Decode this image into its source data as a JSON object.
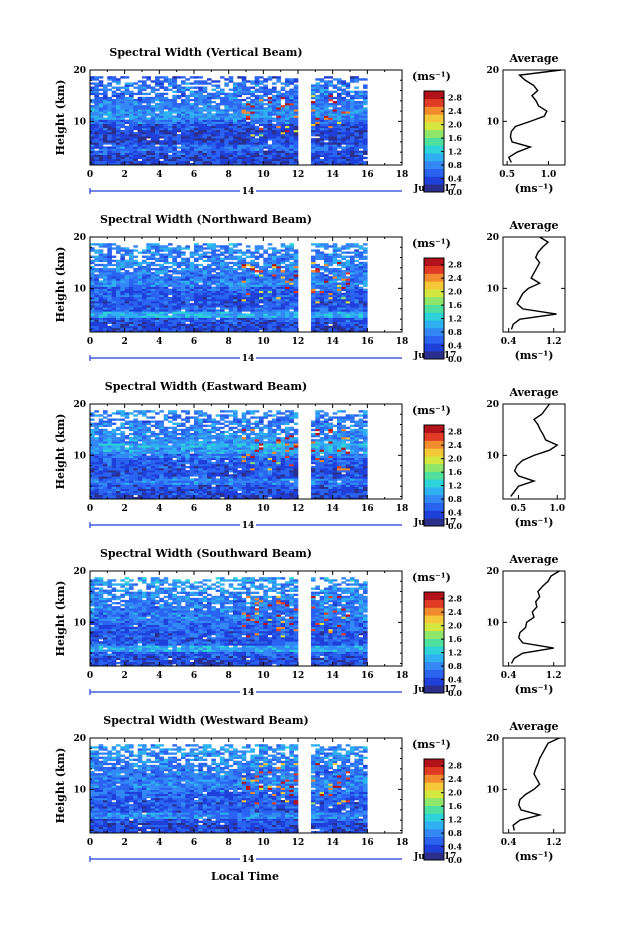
{
  "figure": {
    "xlabel": "Local Time",
    "cbar_ticks": [
      "0.0",
      "0.4",
      "0.8",
      "1.2",
      "1.6",
      "2.0",
      "2.4",
      "2.8"
    ],
    "colormap": [
      "#2b2f8c",
      "#1f3fd9",
      "#2a63f0",
      "#3388f5",
      "#2fb0f0",
      "#2ed3d9",
      "#4fe0a0",
      "#8fe66a",
      "#d4e640",
      "#f5c83a",
      "#f28a2e",
      "#e03b24",
      "#b3121a"
    ],
    "missing_color": "#ffffff"
  },
  "chart_data": [
    {
      "type": "heatmap",
      "title": "Spectral Width (Vertical Beam)",
      "ylabel": "Height (km)",
      "cbar_label": "(ms⁻¹)",
      "date_label": "14",
      "month_label": "Jul 2017",
      "x_ticks": [
        "0",
        "2",
        "4",
        "6",
        "8",
        "10",
        "12",
        "14",
        "16",
        "18"
      ],
      "xlim": [
        0,
        18
      ],
      "y_ticks": [
        "10",
        "20"
      ],
      "ylim": [
        1.5,
        20
      ],
      "zlim": [
        0,
        3.0
      ],
      "data_extent_hours": [
        0,
        16
      ],
      "gap_hours": [
        12.0,
        12.6
      ],
      "profile": {
        "title": "Average",
        "xlabel": "(ms⁻¹)",
        "x_ticks": [
          "0.5",
          "1.0"
        ],
        "x_tick_values": [
          0.5,
          1.0
        ],
        "xlim": [
          0.45,
          1.2
        ],
        "height": [
          2,
          3,
          4,
          5,
          6,
          7,
          8,
          9,
          10,
          11,
          12,
          13,
          14,
          15,
          16,
          17,
          18,
          19,
          20
        ],
        "value": [
          0.55,
          0.52,
          0.62,
          0.78,
          0.56,
          0.54,
          0.55,
          0.6,
          0.78,
          0.95,
          0.98,
          0.88,
          0.85,
          0.8,
          0.87,
          0.82,
          0.72,
          0.65,
          1.15
        ]
      }
    },
    {
      "type": "heatmap",
      "title": "Spectral Width (Northward Beam)",
      "ylabel": "Height (km)",
      "cbar_label": "(ms⁻¹)",
      "date_label": "14",
      "month_label": "Jul 2017",
      "x_ticks": [
        "0",
        "2",
        "4",
        "6",
        "8",
        "10",
        "12",
        "14",
        "16",
        "18"
      ],
      "xlim": [
        0,
        18
      ],
      "y_ticks": [
        "10",
        "20"
      ],
      "ylim": [
        1.5,
        20
      ],
      "zlim": [
        0,
        3.0
      ],
      "data_extent_hours": [
        0,
        16
      ],
      "gap_hours": [
        12.0,
        12.6
      ],
      "profile": {
        "title": "Average",
        "xlabel": "(ms⁻¹)",
        "x_ticks": [
          "0.4",
          "1.2"
        ],
        "x_tick_values": [
          0.4,
          1.2
        ],
        "xlim": [
          0.3,
          1.4
        ],
        "height": [
          2,
          3,
          4,
          5,
          6,
          7,
          8,
          9,
          10,
          11,
          12,
          13,
          14,
          15,
          16,
          17,
          18,
          19,
          20
        ],
        "value": [
          0.45,
          0.48,
          0.6,
          1.25,
          0.65,
          0.55,
          0.6,
          0.65,
          0.75,
          0.95,
          0.8,
          0.85,
          0.9,
          0.95,
          0.88,
          0.92,
          1.0,
          1.1,
          0.95
        ]
      }
    },
    {
      "type": "heatmap",
      "title": "Spectral Width (Eastward Beam)",
      "ylabel": "Height (km)",
      "cbar_label": "(ms⁻¹)",
      "date_label": "14",
      "month_label": "Jul 2017",
      "x_ticks": [
        "0",
        "2",
        "4",
        "6",
        "8",
        "10",
        "12",
        "14",
        "16",
        "18"
      ],
      "xlim": [
        0,
        18
      ],
      "y_ticks": [
        "10",
        "20"
      ],
      "ylim": [
        1.5,
        20
      ],
      "zlim": [
        0,
        3.0
      ],
      "data_extent_hours": [
        0,
        16
      ],
      "gap_hours": [
        12.0,
        12.6
      ],
      "profile": {
        "title": "Average",
        "xlabel": "(ms⁻¹)",
        "x_ticks": [
          "0.5",
          "1.0"
        ],
        "x_tick_values": [
          0.5,
          1.0
        ],
        "xlim": [
          0.3,
          1.1
        ],
        "height": [
          2,
          3,
          4,
          5,
          6,
          7,
          8,
          9,
          10,
          11,
          12,
          13,
          14,
          15,
          16,
          17,
          18,
          19,
          20
        ],
        "value": [
          0.4,
          0.45,
          0.5,
          0.7,
          0.5,
          0.45,
          0.48,
          0.55,
          0.7,
          0.9,
          1.0,
          0.85,
          0.82,
          0.78,
          0.75,
          0.7,
          0.8,
          0.85,
          0.9
        ]
      }
    },
    {
      "type": "heatmap",
      "title": "Spectral Width (Southward Beam)",
      "ylabel": "Height (km)",
      "cbar_label": "(ms⁻¹)",
      "date_label": "14",
      "month_label": "Jul 2017",
      "x_ticks": [
        "0",
        "2",
        "4",
        "6",
        "8",
        "10",
        "12",
        "14",
        "16",
        "18"
      ],
      "xlim": [
        0,
        18
      ],
      "y_ticks": [
        "10",
        "20"
      ],
      "ylim": [
        1.5,
        20
      ],
      "zlim": [
        0,
        3.0
      ],
      "data_extent_hours": [
        0,
        16
      ],
      "gap_hours": [
        12.0,
        12.6
      ],
      "profile": {
        "title": "Average",
        "xlabel": "(ms⁻¹)",
        "x_ticks": [
          "0.4",
          "1.2"
        ],
        "x_tick_values": [
          0.4,
          1.2
        ],
        "xlim": [
          0.3,
          1.4
        ],
        "height": [
          2,
          3,
          4,
          5,
          6,
          7,
          8,
          9,
          10,
          11,
          12,
          13,
          14,
          15,
          16,
          17,
          18,
          19,
          20
        ],
        "value": [
          0.45,
          0.5,
          0.65,
          1.2,
          0.65,
          0.58,
          0.6,
          0.7,
          0.72,
          0.85,
          0.82,
          0.9,
          0.88,
          0.95,
          0.92,
          1.0,
          1.1,
          1.15,
          1.3
        ]
      }
    },
    {
      "type": "heatmap",
      "title": "Spectral Width (Westward Beam)",
      "ylabel": "Height (km)",
      "cbar_label": "(ms⁻¹)",
      "date_label": "14",
      "month_label": "Jul 2017",
      "x_ticks": [
        "0",
        "2",
        "4",
        "6",
        "8",
        "10",
        "12",
        "14",
        "16",
        "18"
      ],
      "xlim": [
        0,
        18
      ],
      "y_ticks": [
        "10",
        "20"
      ],
      "ylim": [
        1.5,
        20
      ],
      "zlim": [
        0,
        3.0
      ],
      "data_extent_hours": [
        0,
        16
      ],
      "gap_hours": [
        12.0,
        12.6
      ],
      "profile": {
        "title": "Average",
        "xlabel": "(ms⁻¹)",
        "x_ticks": [
          "0.4",
          "1.2"
        ],
        "x_tick_values": [
          0.4,
          1.2
        ],
        "xlim": [
          0.3,
          1.4
        ],
        "height": [
          2,
          3,
          4,
          5,
          6,
          7,
          8,
          9,
          10,
          11,
          12,
          13,
          14,
          15,
          16,
          17,
          18,
          19,
          20
        ],
        "value": [
          0.5,
          0.48,
          0.6,
          0.95,
          0.62,
          0.58,
          0.6,
          0.7,
          0.85,
          0.95,
          0.9,
          0.85,
          0.88,
          0.92,
          0.95,
          1.0,
          1.05,
          1.1,
          1.3
        ]
      }
    }
  ]
}
